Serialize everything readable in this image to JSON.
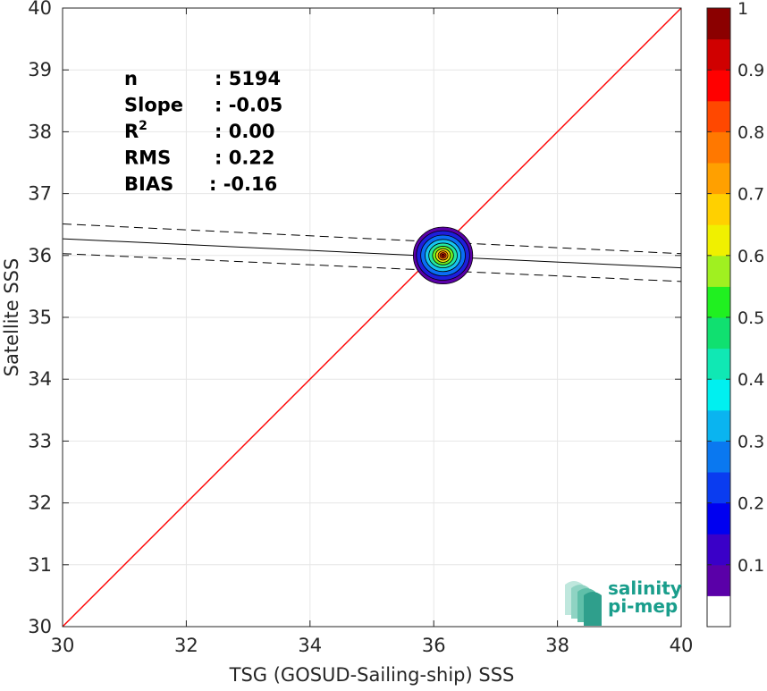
{
  "chart_data": {
    "type": "scatter",
    "xlabel": "TSG (GOSUD-Sailing-ship) SSS",
    "ylabel": "Satellite SSS",
    "xlim": [
      30,
      40
    ],
    "ylim": [
      30,
      40
    ],
    "x_ticks": [
      "30",
      "32",
      "34",
      "36",
      "38",
      "40"
    ],
    "y_ticks": [
      "30",
      "31",
      "32",
      "33",
      "34",
      "35",
      "36",
      "37",
      "38",
      "39",
      "40"
    ],
    "grid": true,
    "stats": [
      {
        "label": "n",
        "value": ": 5194"
      },
      {
        "label": "Slope",
        "value": ": -0.05"
      },
      {
        "label": "R",
        "sup": "2",
        "value": ": 0.00"
      },
      {
        "label": "RMS",
        "value": ": 0.22"
      },
      {
        "label": "BIAS",
        "value": ": -0.16"
      }
    ],
    "identity_line": {
      "color": "#ff0000",
      "from": [
        30,
        30
      ],
      "to": [
        40,
        40
      ]
    },
    "fit_line": {
      "color": "#000000",
      "y_at_30": 36.27,
      "y_at_40": 35.8
    },
    "confidence_bands": [
      {
        "y_at_30": 36.51,
        "y_at_40": 36.03
      },
      {
        "y_at_30": 36.03,
        "y_at_40": 35.58
      }
    ],
    "density_center": {
      "x": 36.15,
      "y": 36.0
    },
    "density_contours": [
      {
        "level": 0.05,
        "color": "#5a00a8",
        "rx": 0.48,
        "ry": 0.46
      },
      {
        "level": 0.15,
        "color": "#1e1edc",
        "rx": 0.43,
        "ry": 0.4
      },
      {
        "level": 0.25,
        "color": "#0a6ef5",
        "rx": 0.36,
        "ry": 0.33
      },
      {
        "level": 0.35,
        "color": "#16c4f0",
        "rx": 0.29,
        "ry": 0.26
      },
      {
        "level": 0.45,
        "color": "#22e8a0",
        "rx": 0.23,
        "ry": 0.2
      },
      {
        "level": 0.55,
        "color": "#6cf020",
        "rx": 0.17,
        "ry": 0.15
      },
      {
        "level": 0.65,
        "color": "#f0e010",
        "rx": 0.12,
        "ry": 0.11
      },
      {
        "level": 0.75,
        "color": "#ff8c00",
        "rx": 0.08,
        "ry": 0.075
      },
      {
        "level": 0.85,
        "color": "#ff3000",
        "rx": 0.05,
        "ry": 0.045
      },
      {
        "level": 0.95,
        "color": "#8b0000",
        "rx": 0.025,
        "ry": 0.022
      }
    ],
    "colorbar": {
      "ticks": [
        "0.1",
        "0.2",
        "0.3",
        "0.4",
        "0.5",
        "0.6",
        "0.7",
        "0.8",
        "0.9",
        "1"
      ],
      "colors": [
        "#ffffff",
        "#5a00a8",
        "#3a00c8",
        "#0000f0",
        "#0a3cf0",
        "#0a78f0",
        "#0ab4f0",
        "#00f0f0",
        "#10e8b4",
        "#10e070",
        "#20f020",
        "#a0f020",
        "#f0f000",
        "#ffd000",
        "#ffa000",
        "#ff7800",
        "#ff4800",
        "#ff0000",
        "#d00000",
        "#8b0000"
      ]
    },
    "logo_text": [
      "salinity",
      "pi-mep"
    ],
    "logo_color": "#1a9e8c"
  }
}
